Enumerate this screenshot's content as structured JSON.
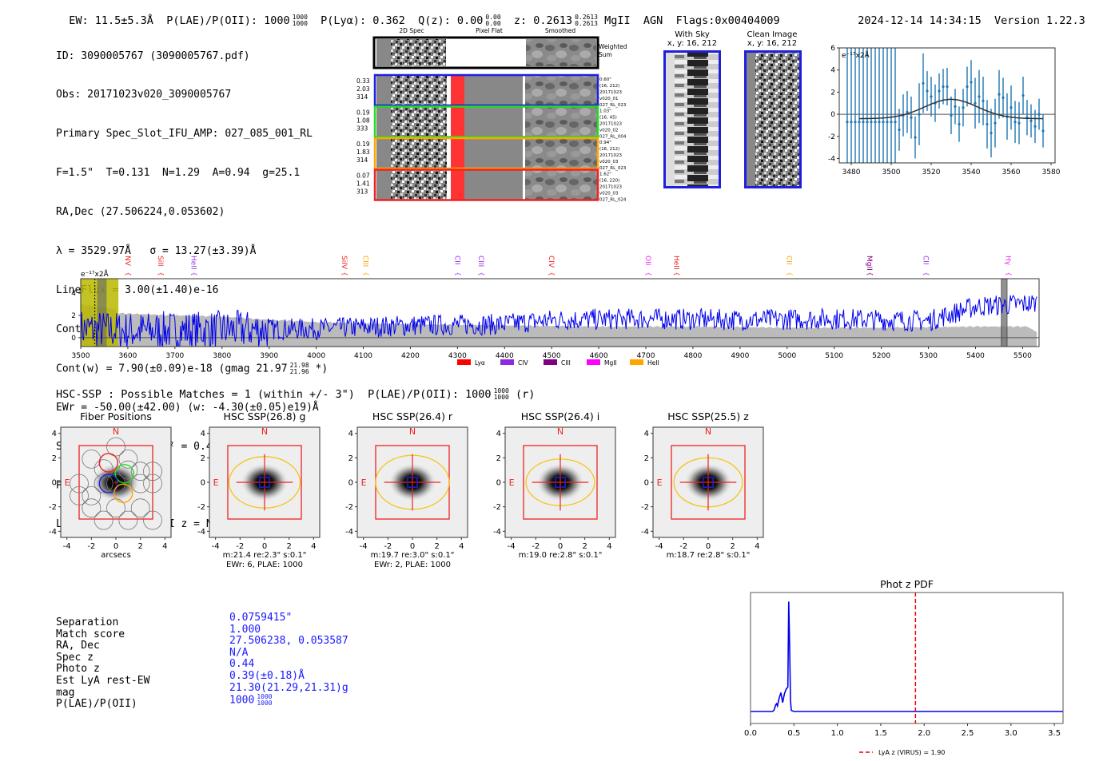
{
  "header": {
    "ew": "EW: 11.5±5.3Å",
    "plae_label": "P(LAE)/P(OII): 1000",
    "plae_hi": "1000",
    "plae_lo": "1000",
    "plya": "P(Lyα): 0.362",
    "qz_label": "Q(z): 0.00",
    "qz_hi": "0.00",
    "qz_lo": "0.00",
    "z_label": "z: 0.2613",
    "z_hi": "0.2613",
    "z_lo": "0.2613",
    "line": "MgII",
    "type": "AGN",
    "flags": "Flags:0x00404009",
    "datetime": "2024-12-14 14:34:15",
    "version": "Version 1.22.3"
  },
  "info": {
    "lines": [
      "ID: 3090005767 (3090005767.pdf)",
      "Obs: 20171023v020_3090005767",
      "Primary Spec_Slot_IFU_AMP: 027_085_001_RL",
      "F=1.5\"  T=0.131  N=1.29  A=0.94  g=25.1",
      "RA,Dec (27.506224,0.053602)",
      "λ = 3529.97Å   σ = 13.27(±3.39)Å",
      "LineFlux = 3.00(±1.40)e-16",
      "Cont(n) = -2.10(±0.00)e-18"
    ],
    "contw": "Cont(w) = 7.90(±0.09)e-18 (gmag 21.97",
    "contw_hi": "21.98",
    "contw_lo": "21.96",
    "contw_tail": " *)",
    "ewr": "EWr = -50.00(±42.00) (w: -4.30(±0.05)e19)Å",
    "sn": "S/N = 2.7(±1.2)  χ² = 0.4(±0.0)",
    "plae": "P(LAE)/P(OII): 0",
    "plae_hi": "0",
    "plae_lo": "0",
    "lyaz": "LyA z = 1.9037  OII z = N/A"
  },
  "spec2d": {
    "col_headers": [
      "2D Spec",
      "Pixel Flat",
      "Smoothed"
    ],
    "weighted_label_1": "Weighted",
    "weighted_label_2": "Sum",
    "rows": [
      {
        "color": "#1f1fdd",
        "left": [
          "0.33",
          "2.03",
          "314"
        ],
        "right": [
          "0.60\"",
          "(16, 212)",
          "20171023",
          "v020_01",
          "027_RL_023"
        ]
      },
      {
        "color": "#22dd22",
        "left": [
          "0.19",
          "1.08",
          "333"
        ],
        "right": [
          "1.03\"",
          "(16, 45)",
          "20171023",
          "v020_02",
          "027_RL_004"
        ]
      },
      {
        "color": "#ffa500",
        "left": [
          "0.19",
          "1.83",
          "314"
        ],
        "right": [
          "0.94\"",
          "(16, 212)",
          "20171023",
          "v020_03",
          "027_RL_023"
        ]
      },
      {
        "color": "#ee2222",
        "left": [
          "0.07",
          "1.41",
          "313"
        ],
        "right": [
          "1.62\"",
          "(16, 220)",
          "20171023",
          "v020_03",
          "027_RL_024"
        ]
      }
    ]
  },
  "cutouts": {
    "with_sky_title": "With Sky",
    "with_sky_xy": "x, y: 16, 212",
    "clean_title": "Clean Image",
    "clean_xy": "x, y: 16, 212"
  },
  "chart_data": [
    {
      "type": "scatter",
      "title": "",
      "unit_label": "e⁻¹⁷x2Å",
      "xlim": [
        3474,
        3582
      ],
      "ylim": [
        -4.4,
        6
      ],
      "xticks": [
        3480,
        3500,
        3520,
        3540,
        3560,
        3580
      ],
      "yticks": [
        -4,
        -2,
        0,
        2,
        4,
        6
      ],
      "points_x": [
        3478,
        3480,
        3482,
        3484,
        3486,
        3488,
        3490,
        3492,
        3494,
        3496,
        3498,
        3500,
        3502,
        3504,
        3506,
        3508,
        3510,
        3512,
        3514,
        3516,
        3518,
        3520,
        3522,
        3524,
        3526,
        3528,
        3530,
        3532,
        3534,
        3536,
        3538,
        3540,
        3542,
        3544,
        3546,
        3548,
        3550,
        3552,
        3554,
        3556,
        3558,
        3560,
        3562,
        3564,
        3566,
        3568,
        3570,
        3572,
        3574,
        3576
      ],
      "points_y": [
        -0.7,
        -0.7,
        -0.7,
        -0.7,
        -0.7,
        -0.7,
        -0.7,
        -0.7,
        -0.7,
        -0.7,
        -0.7,
        -0.7,
        -0.7,
        -1.4,
        -0.1,
        0.2,
        -0.3,
        -2.1,
        0.0,
        2.8,
        2.1,
        1.6,
        1.0,
        2.1,
        2.5,
        2.5,
        -0.1,
        0.7,
        -0.9,
        0.6,
        2.5,
        2.9,
        1.0,
        1.6,
        1.2,
        -0.9,
        -1.7,
        -0.8,
        1.8,
        1.5,
        -0.2,
        0.6,
        -0.7,
        -0.8,
        1.7,
        -0.3,
        -0.6,
        -1.1,
        0.0,
        -1.5
      ],
      "errors": [
        20,
        20,
        20,
        20,
        20,
        20,
        20,
        20,
        20,
        20,
        20,
        20,
        20,
        1.9,
        1.9,
        1.9,
        1.9,
        1.9,
        2.8,
        2.7,
        1.8,
        1.8,
        1.7,
        1.6,
        1.6,
        1.7,
        1.7,
        1.6,
        1.6,
        1.7,
        1.8,
        2.0,
        2.3,
        2.4,
        2.2,
        2.2,
        2.2,
        2.2,
        2.2,
        1.8,
        2.1,
        2.0,
        1.9,
        1.9,
        1.7,
        1.6,
        1.5,
        1.5,
        1.4,
        1.5
      ],
      "fit": {
        "amplitude": 1.75,
        "center": 3529.97,
        "sigma": 13.27,
        "offset": -0.4,
        "x_range": [
          3484,
          3576
        ]
      }
    },
    {
      "type": "line",
      "title": "",
      "unit_label": "e⁻¹⁷x2Å",
      "xlim": [
        3500,
        5535
      ],
      "ylim": [
        -0.8,
        5.3
      ],
      "xticks": [
        3500,
        3600,
        3700,
        3800,
        3900,
        4000,
        4100,
        4200,
        4300,
        4400,
        4500,
        4600,
        4700,
        4800,
        4900,
        5000,
        5100,
        5200,
        5300,
        5400,
        5500
      ],
      "yticks": [
        0,
        2,
        4
      ],
      "series": [
        {
          "name": "flux",
          "color": "#0000ee",
          "noise_seed": 7,
          "baseline": [
            [
              3500,
              0.8
            ],
            [
              3600,
              0.6
            ],
            [
              3800,
              0.7
            ],
            [
              4000,
              0.8
            ],
            [
              4200,
              1.1
            ],
            [
              4400,
              1.2
            ],
            [
              4500,
              1.6
            ],
            [
              4700,
              1.7
            ],
            [
              4900,
              1.6
            ],
            [
              5100,
              1.7
            ],
            [
              5300,
              1.5
            ],
            [
              5400,
              2.8
            ],
            [
              5530,
              3.1
            ]
          ]
        },
        {
          "name": "error",
          "color": "#bbbbbb",
          "envelope": [
            [
              3500,
              3.0
            ],
            [
              3570,
              2.6
            ],
            [
              3580,
              2.2
            ],
            [
              3700,
              2.0
            ],
            [
              3800,
              1.9
            ],
            [
              3900,
              1.6
            ],
            [
              4000,
              1.4
            ],
            [
              4200,
              1.2
            ],
            [
              4400,
              1.1
            ],
            [
              4600,
              1.0
            ],
            [
              4800,
              1.0
            ],
            [
              5000,
              0.9
            ],
            [
              5200,
              0.9
            ],
            [
              5400,
              1.0
            ],
            [
              5510,
              1.0
            ],
            [
              5530,
              0.5
            ]
          ]
        }
      ],
      "highlight_range": [
        3500,
        3580
      ],
      "line_markers": [
        {
          "label": "NV",
          "x": 3600,
          "color": "#ee2222"
        },
        {
          "label": "SiII",
          "x": 3670,
          "color": "#ee2222"
        },
        {
          "label": "HeII",
          "x": 3740,
          "color": "#9933ee"
        },
        {
          "label": "SiIV",
          "x": 4060,
          "color": "#ee2222"
        },
        {
          "label": "CIII",
          "x": 4105,
          "color": "#ffa500"
        },
        {
          "label": "CII",
          "x": 4300,
          "color": "#9933ee"
        },
        {
          "label": "CIII",
          "x": 4350,
          "color": "#9933ee"
        },
        {
          "label": "CIV",
          "x": 4500,
          "color": "#ee2222"
        },
        {
          "label": "OII",
          "x": 4705,
          "color": "#ee22ee"
        },
        {
          "label": "HeII",
          "x": 4765,
          "color": "#ee2222"
        },
        {
          "label": "CII",
          "x": 5005,
          "color": "#ffa500"
        },
        {
          "label": "MgII",
          "x": 5175,
          "color": "#800080"
        },
        {
          "label": "CII",
          "x": 5295,
          "color": "#9933ee"
        },
        {
          "label": "Hγ",
          "x": 5470,
          "color": "#ee22ee"
        }
      ],
      "legend": [
        {
          "label": "Lyα",
          "color": "#ff0000"
        },
        {
          "label": "CIV",
          "color": "#8a2be2"
        },
        {
          "label": "CIII",
          "color": "#800080"
        },
        {
          "label": "MgII",
          "color": "#ff00ff"
        },
        {
          "label": "HeII",
          "color": "#ffa500"
        }
      ],
      "legend_position": "bottom"
    },
    {
      "type": "line",
      "title": "Phot z PDF",
      "xlim": [
        0,
        3.6
      ],
      "xticks": [
        0.0,
        0.5,
        1.0,
        1.5,
        2.0,
        2.5,
        3.0,
        3.5
      ],
      "series": [
        {
          "name": "pdf",
          "color": "#0000ee",
          "x": [
            0,
            0.25,
            0.27,
            0.29,
            0.3,
            0.31,
            0.33,
            0.35,
            0.37,
            0.39,
            0.41,
            0.43,
            0.44,
            0.45,
            0.46,
            0.47,
            0.5,
            3.6
          ],
          "y": [
            0,
            0,
            0.01,
            0.06,
            0.07,
            0.05,
            0.12,
            0.17,
            0.08,
            0.16,
            0.2,
            0.22,
            0.99,
            0.6,
            0.1,
            0.01,
            0,
            0
          ]
        }
      ],
      "vline": {
        "x": 1.9,
        "color": "#ee0000",
        "label": "LyA z (VIRUS) = 1.90"
      },
      "legend_position": "bottom"
    }
  ],
  "hsc": {
    "header": "HSC-SSP : Possible Matches = 1 (within +/- 3\")  P(LAE)/P(OII): 1000",
    "header_hi": "1000",
    "header_lo": "1000",
    "header_tail": " (r)",
    "axis_ticks": [
      "-4",
      "-2",
      "0",
      "2",
      "4"
    ],
    "n_label": "N",
    "e_label": "E",
    "panels": [
      {
        "title": "Fiber Positions",
        "caption1": "arcsecs",
        "caption2": ""
      },
      {
        "title": "HSC SSP(26.8) g",
        "caption1": "m:21.4  re:2.3\"  s:0.1\"",
        "caption2": "EWr: 6, PLAE: 1000"
      },
      {
        "title": "HSC SSP(26.4) r",
        "caption1": "m:19.7  re:3.0\"  s:0.1\"",
        "caption2": "EWr: 2, PLAE: 1000"
      },
      {
        "title": "HSC SSP(26.4) i",
        "caption1": "m:19.0  re:2.8\"  s:0.1\"",
        "caption2": ""
      },
      {
        "title": "HSC SSP(25.5) z",
        "caption1": "m:18.7  re:2.8\"  s:0.1\"",
        "caption2": ""
      }
    ]
  },
  "match": {
    "labels": [
      "Separation",
      "Match score",
      "RA, Dec",
      "Spec z",
      "Photo z",
      "Est LyA rest-EW",
      "mag",
      "P(LAE)/P(OII)"
    ],
    "values": [
      "0.0759415\"",
      "1.000",
      "27.506238, 0.053587",
      "N/A",
      "0.44",
      "0.39(±0.18)Å",
      "21.30(21.29,21.31)g",
      "1000"
    ],
    "plae_hi": "1000",
    "plae_lo": "1000"
  }
}
